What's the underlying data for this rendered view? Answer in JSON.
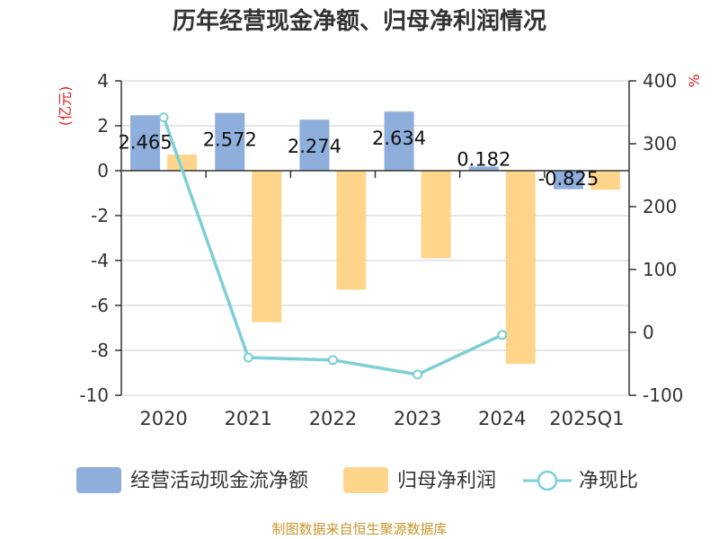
{
  "chart_data": {
    "type": "bar",
    "title": "历年经营现金净额、归母净利润情况",
    "left_axis_unit": "(亿元)",
    "right_axis_unit": "%",
    "categories": [
      "2020",
      "2021",
      "2022",
      "2023",
      "2024",
      "2025Q1"
    ],
    "series": [
      {
        "name": "经营活动现金流净额",
        "type": "bar",
        "axis": "left",
        "color": "#8eaedb",
        "values": [
          2.465,
          2.572,
          2.274,
          2.634,
          0.182,
          -0.825
        ],
        "data_labels": [
          "2.465",
          "2.572",
          "2.274",
          "2.634",
          "0.182",
          "-0.825"
        ]
      },
      {
        "name": "归母净利润",
        "type": "bar",
        "axis": "left",
        "color": "#ffd58c",
        "values": [
          0.72,
          -6.75,
          -5.3,
          -3.9,
          -8.6,
          -0.85
        ]
      },
      {
        "name": "净现比",
        "type": "line",
        "axis": "right",
        "color": "#7dcfd6",
        "values": [
          342,
          -40,
          -44,
          -67,
          -4,
          null
        ]
      }
    ],
    "left_axis": {
      "min": -10,
      "max": 4,
      "ticks": [
        "4",
        "2",
        "0",
        "-2",
        "-4",
        "-6",
        "-8",
        "-10"
      ]
    },
    "right_axis": {
      "min": -100,
      "max": 400,
      "ticks": [
        "400",
        "300",
        "200",
        "100",
        "0",
        "-100"
      ]
    },
    "grid": true,
    "legend_position": "bottom"
  },
  "source": "制图数据来自恒生聚源数据库"
}
